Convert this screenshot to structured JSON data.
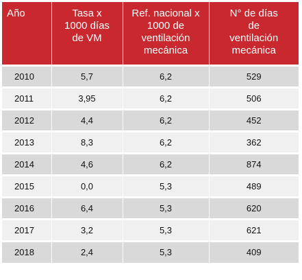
{
  "table": {
    "headers": [
      {
        "lines": [
          "Año"
        ]
      },
      {
        "lines": [
          "Tasa x",
          "1000 días",
          "de VM"
        ]
      },
      {
        "lines": [
          "Ref. nacional x",
          "1000 de",
          "ventilación",
          "mecánica"
        ]
      },
      {
        "lines": [
          "N° de días",
          "de",
          "ventilación",
          "mecánica"
        ]
      }
    ],
    "rows": [
      {
        "year": "2010",
        "rate": "5,7",
        "ref": "6,2",
        "days": "529"
      },
      {
        "year": "2011",
        "rate": "3,95",
        "ref": "6,2",
        "days": "506"
      },
      {
        "year": "2012",
        "rate": "4,4",
        "ref": "6,2",
        "days": "452"
      },
      {
        "year": "2013",
        "rate": "8,3",
        "ref": "6,2",
        "days": "362"
      },
      {
        "year": "2014",
        "rate": "4,6",
        "ref": "6,2",
        "days": "874"
      },
      {
        "year": "2015",
        "rate": "0,0",
        "ref": "5,3",
        "days": "489"
      },
      {
        "year": "2016",
        "rate": "6,4",
        "ref": "5,3",
        "days": "620"
      },
      {
        "year": "2017",
        "rate": "3,2",
        "ref": "5,3",
        "days": "621"
      },
      {
        "year": "2018",
        "rate": "2,4",
        "ref": "5,3",
        "days": "409"
      }
    ]
  },
  "colors": {
    "header_bg": "#c8282e",
    "row_dark": "#d9d9d9",
    "row_light": "#f0f0f0"
  }
}
